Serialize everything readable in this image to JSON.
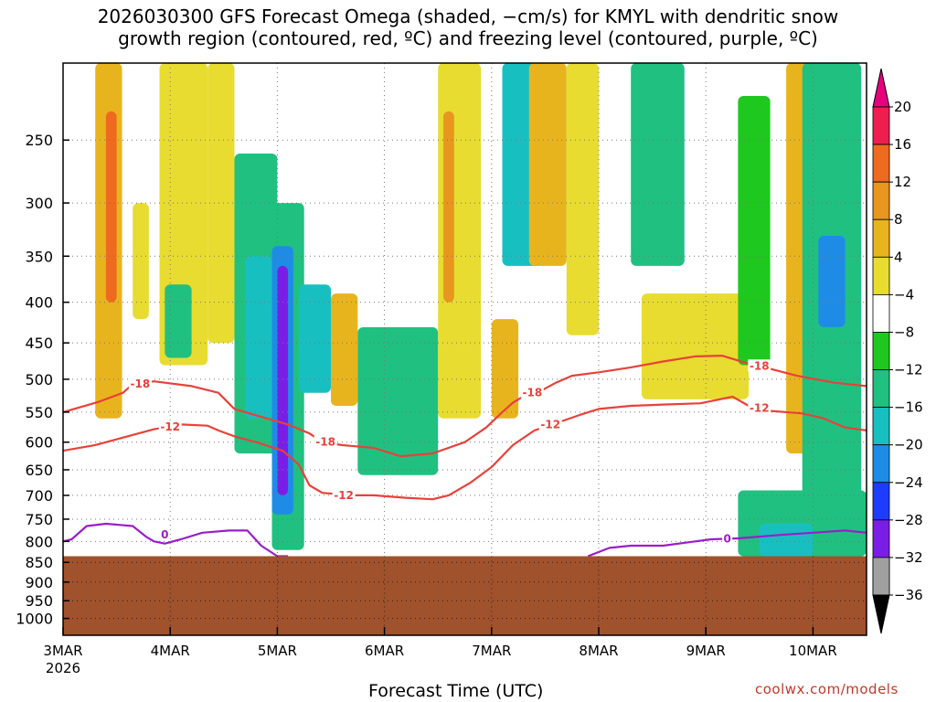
{
  "title": {
    "line1": "2026030300 GFS Forecast Omega (shaded, −cm/s) for KMYL with dendritic snow",
    "line2": "growth region (contoured, red, ºC) and freezing level (contoured, purple, ºC)"
  },
  "watermark": "coolwx.com/models",
  "chart_data": {
    "type": "heatmap",
    "title": "2026030300 GFS Forecast Omega (shaded, −cm/s) for KMYL with dendritic snow growth region (contoured, red, ºC) and freezing level (contoured, purple, ºC)",
    "xlabel": "Forecast Time (UTC)",
    "ylabel": "",
    "x_ticks": [
      {
        "label": "3MAR",
        "sub": "2026",
        "day": 0
      },
      {
        "label": "4MAR",
        "day": 1
      },
      {
        "label": "5MAR",
        "day": 2
      },
      {
        "label": "6MAR",
        "day": 3
      },
      {
        "label": "7MAR",
        "day": 4
      },
      {
        "label": "8MAR",
        "day": 5
      },
      {
        "label": "9MAR",
        "day": 6
      },
      {
        "label": "10MAR",
        "day": 7
      }
    ],
    "xlim": [
      0,
      7.5
    ],
    "y_ticks": [
      250,
      300,
      350,
      400,
      450,
      500,
      550,
      600,
      650,
      700,
      750,
      800,
      850,
      900,
      950,
      1000
    ],
    "ylim": [
      1050,
      200
    ],
    "yscale": "log",
    "grid": true,
    "surface_pressure": 835,
    "colorbar": {
      "ticks": [
        "20",
        "16",
        "12",
        "8",
        "4",
        "−4",
        "−8",
        "−12",
        "−16",
        "−20",
        "−24",
        "−28",
        "−32",
        "−36"
      ],
      "colors": [
        "#ee1e50",
        "#ee6a1e",
        "#e8961e",
        "#e8b41e",
        "#e8dc30",
        "#ffffff",
        "#1ec81e",
        "#20c080",
        "#18bfc0",
        "#1e8ce6",
        "#1e3cff",
        "#7a1ee6",
        "#9e00c8",
        "#a0a0a0",
        "#000000"
      ],
      "top_arrow_color": "#e6007e",
      "bottom_arrow_color": "#000000"
    },
    "contours": {
      "dgz_top": {
        "label": "-18",
        "color": "#e8413a",
        "points": [
          [
            0,
            550
          ],
          [
            0.33,
            534
          ],
          [
            0.56,
            520
          ],
          [
            0.65,
            507
          ],
          [
            0.85,
            503
          ],
          [
            1.2,
            510
          ],
          [
            1.45,
            520
          ],
          [
            1.6,
            545
          ],
          [
            1.9,
            560
          ],
          [
            2.1,
            570
          ],
          [
            2.3,
            585
          ],
          [
            2.42,
            600
          ],
          [
            2.6,
            605
          ],
          [
            2.9,
            610
          ],
          [
            3.15,
            625
          ],
          [
            3.45,
            620
          ],
          [
            3.75,
            600
          ],
          [
            3.95,
            575
          ],
          [
            4.1,
            550
          ],
          [
            4.2,
            535
          ],
          [
            4.3,
            525
          ],
          [
            4.45,
            518
          ],
          [
            4.6,
            505
          ],
          [
            4.75,
            495
          ],
          [
            5.0,
            490
          ],
          [
            5.3,
            483
          ],
          [
            5.6,
            475
          ],
          [
            5.9,
            468
          ],
          [
            6.15,
            467
          ],
          [
            6.4,
            478
          ],
          [
            6.6,
            485
          ],
          [
            6.85,
            495
          ],
          [
            7.2,
            505
          ],
          [
            7.5,
            510
          ]
        ]
      },
      "dgz_bottom": {
        "label": "-12",
        "color": "#e8413a",
        "points": [
          [
            0,
            615
          ],
          [
            0.3,
            605
          ],
          [
            0.6,
            590
          ],
          [
            0.85,
            578
          ],
          [
            1.1,
            570
          ],
          [
            1.35,
            572
          ],
          [
            1.45,
            580
          ],
          [
            1.6,
            590
          ],
          [
            1.8,
            600
          ],
          [
            2.05,
            615
          ],
          [
            2.2,
            640
          ],
          [
            2.3,
            680
          ],
          [
            2.42,
            695
          ],
          [
            2.7,
            700
          ],
          [
            2.9,
            700
          ],
          [
            3.2,
            705
          ],
          [
            3.45,
            708
          ],
          [
            3.6,
            700
          ],
          [
            3.8,
            675
          ],
          [
            4.0,
            645
          ],
          [
            4.2,
            605
          ],
          [
            4.4,
            580
          ],
          [
            4.65,
            565
          ],
          [
            4.85,
            553
          ],
          [
            5.0,
            545
          ],
          [
            5.3,
            540
          ],
          [
            5.6,
            538
          ],
          [
            5.95,
            536
          ],
          [
            6.25,
            526
          ],
          [
            6.4,
            540
          ],
          [
            6.6,
            548
          ],
          [
            6.9,
            552
          ],
          [
            7.1,
            560
          ],
          [
            7.3,
            575
          ],
          [
            7.5,
            580
          ]
        ]
      },
      "freezing_level": {
        "label": "0",
        "color": "#9a1ec8",
        "points": [
          [
            0,
            800
          ],
          [
            0.08,
            795
          ],
          [
            0.22,
            765
          ],
          [
            0.4,
            760
          ],
          [
            0.65,
            765
          ],
          [
            0.78,
            790
          ],
          [
            0.85,
            800
          ],
          [
            0.95,
            805
          ],
          [
            1.1,
            795
          ],
          [
            1.3,
            780
          ],
          [
            1.55,
            775
          ],
          [
            1.72,
            775
          ],
          [
            1.85,
            810
          ],
          [
            2.0,
            835
          ],
          [
            2.1,
            835
          ]
        ],
        "segment2": [
          [
            4.9,
            835
          ],
          [
            5.1,
            815
          ],
          [
            5.3,
            810
          ],
          [
            5.6,
            810
          ],
          [
            5.9,
            800
          ],
          [
            6.05,
            795
          ],
          [
            6.3,
            793
          ],
          [
            6.7,
            785
          ],
          [
            7.0,
            780
          ],
          [
            7.3,
            775
          ],
          [
            7.5,
            780
          ]
        ]
      }
    },
    "shaded_regions_omega": [
      {
        "x": [
          0.3,
          0.55
        ],
        "p": [
          200,
          560
        ],
        "value": 8
      },
      {
        "x": [
          0.4,
          0.5
        ],
        "p": [
          230,
          400
        ],
        "value": 16
      },
      {
        "x": [
          0.65,
          0.8
        ],
        "p": [
          300,
          420
        ],
        "value": 4
      },
      {
        "x": [
          0.9,
          1.35
        ],
        "p": [
          200,
          480
        ],
        "value": 4
      },
      {
        "x": [
          0.95,
          1.2
        ],
        "p": [
          380,
          470
        ],
        "value": -8
      },
      {
        "x": [
          1.35,
          1.6
        ],
        "p": [
          200,
          450
        ],
        "value": 4
      },
      {
        "x": [
          1.6,
          2.0
        ],
        "p": [
          260,
          620
        ],
        "value": -8
      },
      {
        "x": [
          1.7,
          1.95
        ],
        "p": [
          350,
          560
        ],
        "value": -12
      },
      {
        "x": [
          1.95,
          2.25
        ],
        "p": [
          300,
          820
        ],
        "value": -8
      },
      {
        "x": [
          1.95,
          2.15
        ],
        "p": [
          340,
          740
        ],
        "value": -16
      },
      {
        "x": [
          2.0,
          2.1
        ],
        "p": [
          360,
          700
        ],
        "value": -24
      },
      {
        "x": [
          2.25,
          2.4
        ],
        "p": [
          390,
          480
        ],
        "value": -20
      },
      {
        "x": [
          2.2,
          2.5
        ],
        "p": [
          380,
          520
        ],
        "value": -12
      },
      {
        "x": [
          2.5,
          2.75
        ],
        "p": [
          390,
          540
        ],
        "value": 8
      },
      {
        "x": [
          2.75,
          3.5
        ],
        "p": [
          430,
          660
        ],
        "value": -8
      },
      {
        "x": [
          3.5,
          3.9
        ],
        "p": [
          200,
          560
        ],
        "value": 4
      },
      {
        "x": [
          3.55,
          3.65
        ],
        "p": [
          230,
          400
        ],
        "value": 12
      },
      {
        "x": [
          4.0,
          4.25
        ],
        "p": [
          420,
          560
        ],
        "value": 8
      },
      {
        "x": [
          4.1,
          4.5
        ],
        "p": [
          200,
          360
        ],
        "value": -12
      },
      {
        "x": [
          4.35,
          4.7
        ],
        "p": [
          200,
          360
        ],
        "value": 8
      },
      {
        "x": [
          4.7,
          5.0
        ],
        "p": [
          200,
          440
        ],
        "value": 4
      },
      {
        "x": [
          5.3,
          5.8
        ],
        "p": [
          200,
          360
        ],
        "value": -8
      },
      {
        "x": [
          5.4,
          6.4
        ],
        "p": [
          390,
          530
        ],
        "value": 4
      },
      {
        "x": [
          6.3,
          6.6
        ],
        "p": [
          220,
          480
        ],
        "value": -4
      },
      {
        "x": [
          6.75,
          7.0
        ],
        "p": [
          200,
          620
        ],
        "value": 8
      },
      {
        "x": [
          6.9,
          7.45
        ],
        "p": [
          200,
          840
        ],
        "value": -8
      },
      {
        "x": [
          7.05,
          7.3
        ],
        "p": [
          330,
          430
        ],
        "value": -16
      },
      {
        "x": [
          6.3,
          7.5
        ],
        "p": [
          690,
          835
        ],
        "value": -8
      },
      {
        "x": [
          6.5,
          7.0
        ],
        "p": [
          760,
          835
        ],
        "value": -12
      }
    ]
  }
}
